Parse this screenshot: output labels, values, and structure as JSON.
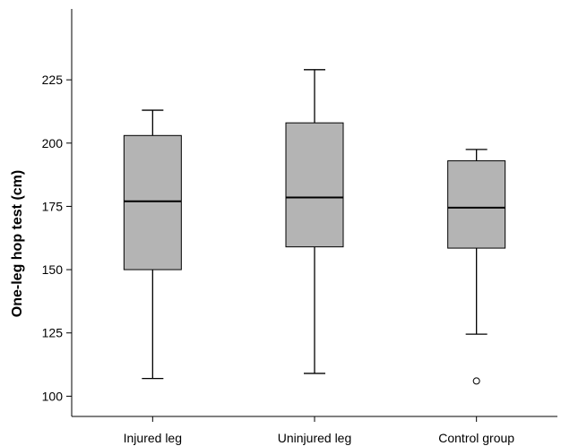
{
  "chart_data": {
    "type": "boxplot",
    "title": "",
    "xlabel": "",
    "ylabel": "One-leg hop test (cm)",
    "ylim": [
      92,
      253
    ],
    "yticks": [
      100,
      125,
      150,
      175,
      200,
      225
    ],
    "grid": false,
    "box_color": "#b4b4b4",
    "categories": [
      "Injured leg",
      "Uninjured leg",
      "Control group"
    ],
    "boxes": [
      {
        "category": "Injured leg",
        "whisker_low": 107,
        "q1": 150,
        "median": 177,
        "q3": 203,
        "whisker_high": 213,
        "outliers": []
      },
      {
        "category": "Uninjured leg",
        "whisker_low": 109,
        "q1": 159,
        "median": 178.5,
        "q3": 208,
        "whisker_high": 229,
        "outliers": []
      },
      {
        "category": "Control group",
        "whisker_low": 124.5,
        "q1": 158.5,
        "median": 174.5,
        "q3": 193,
        "whisker_high": 197.5,
        "outliers": [
          106
        ]
      }
    ]
  }
}
